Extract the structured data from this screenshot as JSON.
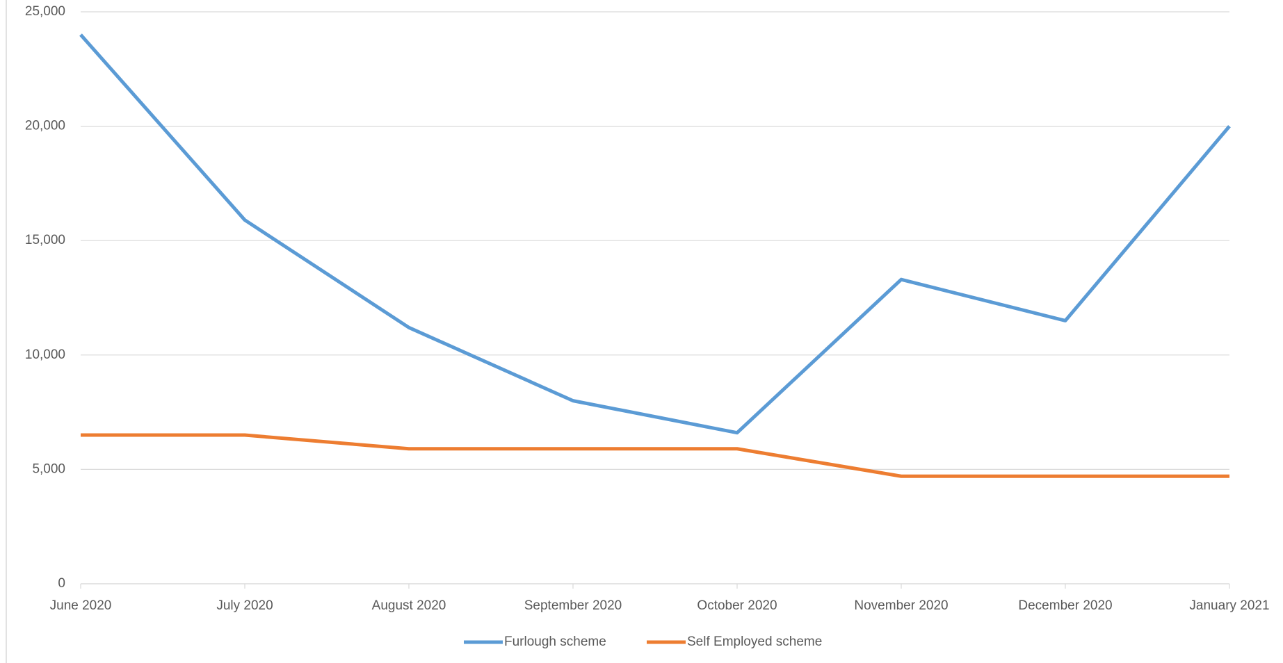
{
  "chart_data": {
    "type": "line",
    "categories": [
      "June 2020",
      "July 2020",
      "August 2020",
      "September 2020",
      "October 2020",
      "November 2020",
      "December 2020",
      "January 2021"
    ],
    "series": [
      {
        "name": "Furlough scheme",
        "color": "#5b9bd5",
        "values": [
          24000,
          15900,
          11200,
          8000,
          6600,
          13300,
          11500,
          20000
        ]
      },
      {
        "name": "Self Employed scheme",
        "color": "#ed7d31",
        "values": [
          6500,
          6500,
          5900,
          5900,
          5900,
          4700,
          4700,
          4700
        ]
      }
    ],
    "ylim": [
      0,
      25000
    ],
    "yticks": [
      0,
      {
        "value": 5000,
        "label": "5,000"
      },
      {
        "value": 10000,
        "label": "10,000"
      },
      {
        "value": 15000,
        "label": "15,000"
      },
      {
        "value": 20000,
        "label": "20,000"
      },
      {
        "value": 25000,
        "label": "25,000"
      }
    ],
    "grid": true,
    "legend": "bottom"
  }
}
